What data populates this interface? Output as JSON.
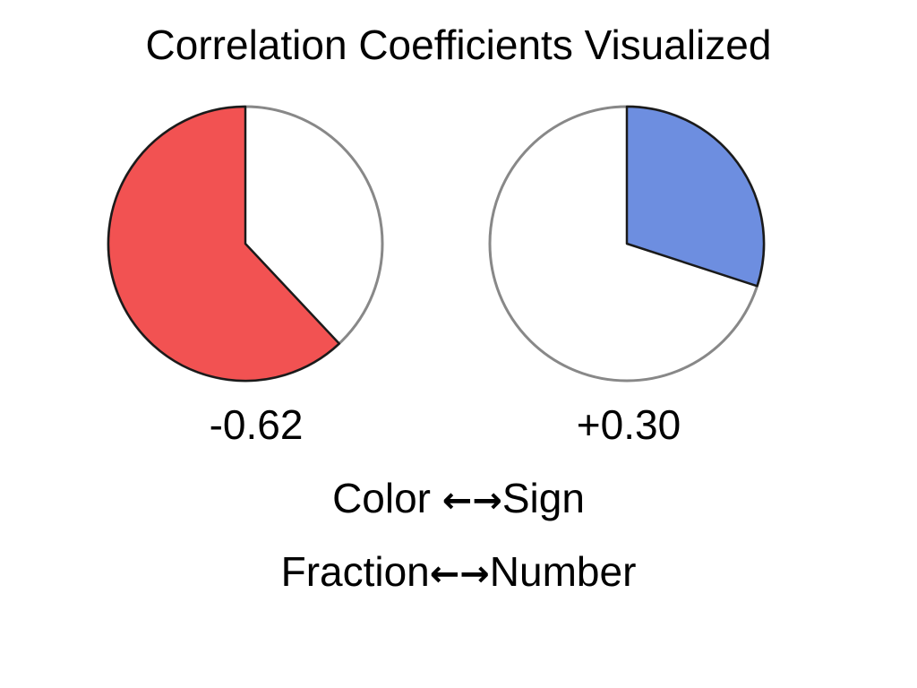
{
  "title": "Correlation Coefficients Visualized",
  "chart_data": {
    "type": "pie",
    "charts": [
      {
        "value": -0.62,
        "label": "-0.62",
        "fraction": 0.62,
        "color": "#f25252"
      },
      {
        "value": 0.3,
        "label": "+0.30",
        "fraction": 0.3,
        "color": "#6d8ee0"
      }
    ],
    "remainder_color": "#ffffff"
  },
  "legend": {
    "line1": {
      "left": "Color ",
      "arrows": "←→",
      "right": "Sign"
    },
    "line2": {
      "left": "Fraction",
      "arrows": "←→",
      "right": "Number"
    }
  }
}
